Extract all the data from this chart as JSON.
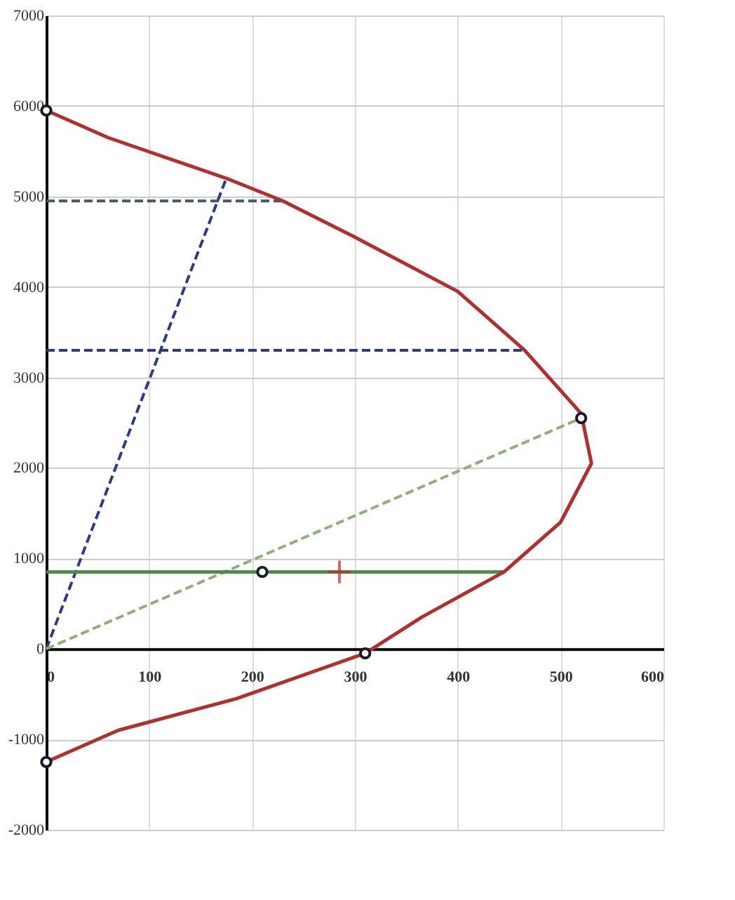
{
  "chart_data": {
    "type": "line",
    "xlim": [
      0,
      600
    ],
    "ylim": [
      -2000,
      7000
    ],
    "xticks": [
      0,
      100,
      200,
      300,
      400,
      500,
      600
    ],
    "yticks": [
      -2000,
      -1000,
      0,
      1000,
      2000,
      3000,
      4000,
      5000,
      6000,
      7000
    ],
    "grid": true,
    "series": [
      {
        "color": "#2b3a8a",
        "line_style": "dashed",
        "x": [
          0,
          175
        ],
        "values": [
          0,
          5200
        ]
      },
      {
        "color": "#3d5a6e",
        "line_style": "dashed",
        "x": [
          0,
          230
        ],
        "values": [
          4950,
          4950
        ]
      },
      {
        "color": "#2b3a8a",
        "line_style": "dashed",
        "x": [
          0,
          465
        ],
        "values": [
          3300,
          3300
        ]
      },
      {
        "color": "#8fae7a",
        "line_style": "dashed",
        "x": [
          0,
          520
        ],
        "values": [
          0,
          2550
        ]
      },
      {
        "color": "#4a8a4a",
        "line_style": "solid",
        "x": [
          0,
          445
        ],
        "values": [
          850,
          850
        ]
      },
      {
        "color": "#b03030",
        "line_style": "solid",
        "x": [
          0,
          60,
          175,
          230,
          300,
          400,
          465,
          520,
          530,
          500,
          445,
          365,
          310,
          185,
          70,
          0
        ],
        "values": [
          5950,
          5650,
          5200,
          4950,
          4550,
          3950,
          3300,
          2600,
          2050,
          1400,
          850,
          350,
          -50,
          -550,
          -900,
          -1250
        ]
      },
      {
        "type": "scatter",
        "color": "#ffffff",
        "marker": "circle",
        "x": [
          0,
          310,
          0
        ],
        "values": [
          5950,
          -50,
          -1250
        ]
      },
      {
        "type": "scatter",
        "color": "#ffffff",
        "marker": "circle",
        "x": [
          520
        ],
        "values": [
          2550
        ]
      },
      {
        "type": "scatter",
        "color": "#ffffff",
        "marker": "circle",
        "x": [
          210
        ],
        "values": [
          850
        ]
      },
      {
        "type": "scatter",
        "color": "#c0282a",
        "marker": "cross",
        "x": [
          285
        ],
        "values": [
          850
        ]
      }
    ]
  }
}
